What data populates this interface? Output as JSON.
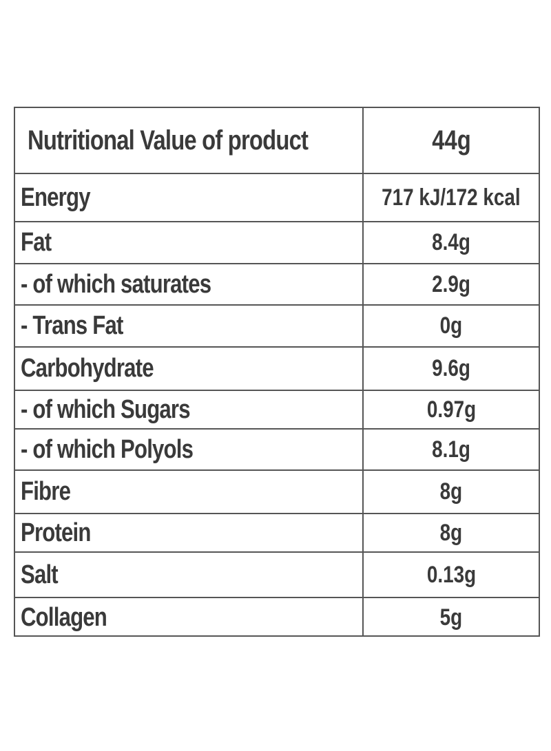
{
  "table": {
    "header": {
      "label": "Nutritional Value of product",
      "value": "44g"
    },
    "rows": [
      {
        "label": "Energy",
        "value": "717 kJ/172 kcal"
      },
      {
        "label": "Fat",
        "value": "8.4g"
      },
      {
        "label": "- of which saturates",
        "value": "2.9g"
      },
      {
        "label": "- Trans Fat",
        "value": "0g"
      },
      {
        "label": "Carbohydrate",
        "value": "9.6g"
      },
      {
        "label": "- of which Sugars",
        "value": "0.97g"
      },
      {
        "label": "- of which Polyols",
        "value": "8.1g"
      },
      {
        "label": "Fibre",
        "value": "8g"
      },
      {
        "label": "Protein",
        "value": "8g"
      },
      {
        "label": "Salt",
        "value": "0.13g"
      },
      {
        "label": "Collagen",
        "value": "5g"
      }
    ]
  }
}
